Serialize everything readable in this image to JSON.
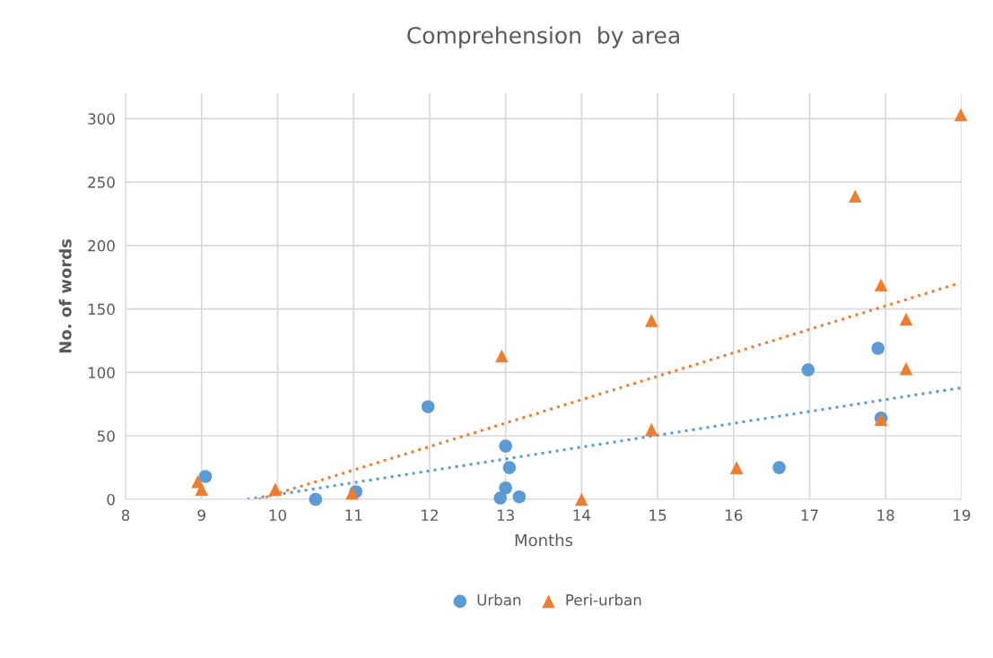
{
  "chart_data": {
    "type": "scatter",
    "title": "Comprehension  by area",
    "xlabel": "Months",
    "ylabel": "No. of words",
    "xlim": [
      8,
      19
    ],
    "xticks": [
      8,
      9,
      10,
      11,
      12,
      13,
      14,
      15,
      16,
      17,
      18,
      19
    ],
    "ylim": [
      0,
      320
    ],
    "yticks": [
      0,
      50,
      100,
      150,
      200,
      250,
      300
    ],
    "grid": true,
    "legend": "bottom",
    "series": [
      {
        "name": "Urban",
        "color": "#5b9bd5",
        "marker": "circle",
        "x": [
          9.05,
          10.5,
          11.03,
          11.98,
          13.0,
          13.05,
          13.0,
          12.93,
          13.18,
          16.6,
          16.98,
          17.9,
          17.94
        ],
        "values": [
          18,
          0,
          6,
          73,
          42,
          25,
          9,
          1,
          2,
          25,
          102,
          119,
          64
        ]
      },
      {
        "name": "Peri-urban",
        "color": "#ed7d31",
        "marker": "triangle",
        "x": [
          8.95,
          9.0,
          9.97,
          10.98,
          12.95,
          14.0,
          14.92,
          14.92,
          16.04,
          17.6,
          17.94,
          18.27,
          18.27,
          17.94,
          18.99
        ],
        "values": [
          14,
          8,
          8,
          5,
          113,
          0,
          141,
          55,
          25,
          239,
          169,
          142,
          103,
          63,
          303
        ]
      },
      {
        "type": "line",
        "color": "#5b9bd5",
        "line_style": "dotted",
        "marker": "none",
        "x": [
          9.6,
          19
        ],
        "values": [
          0,
          88
        ]
      },
      {
        "type": "line",
        "color": "#ed7d31",
        "line_style": "dotted",
        "marker": "none",
        "x": [
          9.75,
          18.95
        ],
        "values": [
          0,
          170
        ]
      }
    ]
  }
}
